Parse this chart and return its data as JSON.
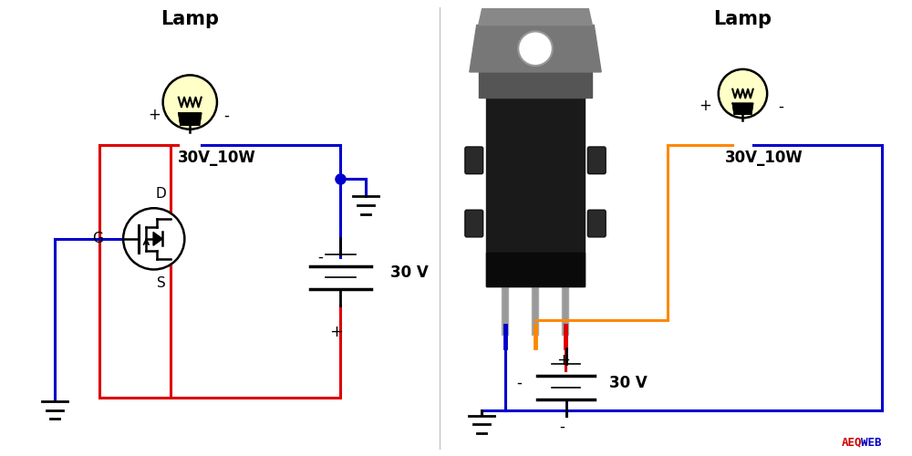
{
  "bg_color": "#ffffff",
  "lamp_color": "#ffffc8",
  "lamp_outline": "#000000",
  "red_wire": "#dd0000",
  "blue_wire": "#0000cc",
  "orange_wire": "#ff8800",
  "watermark_color1": "#cc0000",
  "watermark_color2": "#0000cc",
  "left_label": "Lamp",
  "right_label": "Lamp",
  "voltage_label": "30V_10W",
  "battery_label": "30 V"
}
